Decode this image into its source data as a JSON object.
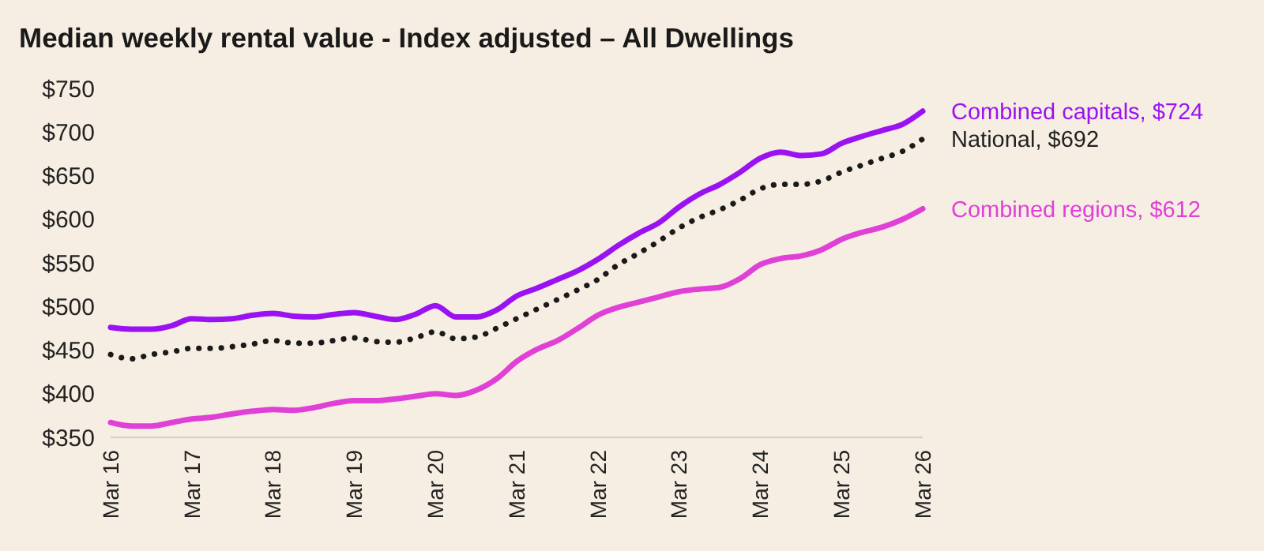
{
  "chart_data": {
    "type": "line",
    "title": "Median weekly rental value - Index adjusted – All Dwellings",
    "x": [
      "2016-03",
      "2016-06",
      "2016-09",
      "2016-12",
      "2017-03",
      "2017-06",
      "2017-09",
      "2017-12",
      "2018-03",
      "2018-06",
      "2018-09",
      "2018-12",
      "2019-03",
      "2019-06",
      "2019-09",
      "2019-12",
      "2020-03",
      "2020-06",
      "2020-09",
      "2020-12",
      "2021-03",
      "2021-06",
      "2021-09",
      "2021-12",
      "2022-03",
      "2022-06",
      "2022-09",
      "2022-12",
      "2023-03",
      "2023-06",
      "2023-09",
      "2023-12",
      "2024-03",
      "2024-06",
      "2024-09",
      "2024-12",
      "2025-03",
      "2025-06",
      "2025-09",
      "2025-12",
      "2026-03"
    ],
    "series": [
      {
        "name": "Combined capitals, $724",
        "color": "#9b12f2",
        "line_style": "solid",
        "values": [
          476,
          474,
          474,
          478,
          486,
          485,
          486,
          490,
          492,
          489,
          488,
          491,
          493,
          489,
          485,
          491,
          501,
          488,
          488,
          496,
          512,
          521,
          531,
          541,
          554,
          570,
          584,
          596,
          614,
          629,
          640,
          654,
          670,
          677,
          673,
          675,
          687,
          695,
          702,
          709,
          724
        ]
      },
      {
        "name": "National, $692",
        "color": "#1a1a1a",
        "line_style": "dotted",
        "values": [
          445,
          440,
          445,
          448,
          452,
          452,
          454,
          457,
          461,
          458,
          458,
          461,
          464,
          460,
          459,
          464,
          471,
          463,
          465,
          475,
          486,
          497,
          508,
          519,
          531,
          548,
          561,
          575,
          590,
          602,
          611,
          622,
          635,
          640,
          640,
          644,
          654,
          662,
          670,
          678,
          692
        ]
      },
      {
        "name": "Combined regions, $612",
        "color": "#e040d6",
        "line_style": "solid",
        "values": [
          367,
          363,
          363,
          367,
          371,
          373,
          377,
          380,
          382,
          381,
          384,
          389,
          392,
          392,
          394,
          397,
          400,
          398,
          404,
          417,
          437,
          451,
          461,
          475,
          490,
          499,
          505,
          511,
          517,
          520,
          522,
          532,
          548,
          555,
          558,
          565,
          577,
          585,
          591,
          600,
          612
        ]
      }
    ],
    "xlim": [
      "2016-03",
      "2026-03"
    ],
    "xticks": [
      {
        "value": "2016-03",
        "label": "Mar 16"
      },
      {
        "value": "2017-03",
        "label": "Mar 17"
      },
      {
        "value": "2018-03",
        "label": "Mar 18"
      },
      {
        "value": "2019-03",
        "label": "Mar 19"
      },
      {
        "value": "2020-03",
        "label": "Mar 20"
      },
      {
        "value": "2021-03",
        "label": "Mar 21"
      },
      {
        "value": "2022-03",
        "label": "Mar 22"
      },
      {
        "value": "2023-03",
        "label": "Mar 23"
      },
      {
        "value": "2024-03",
        "label": "Mar 24"
      },
      {
        "value": "2025-03",
        "label": "Mar 25"
      },
      {
        "value": "2026-03",
        "label": "Mar 26"
      }
    ],
    "ylim": [
      350,
      750
    ],
    "yticks": [
      {
        "value": 350,
        "label": "$350"
      },
      {
        "value": 400,
        "label": "$400"
      },
      {
        "value": 450,
        "label": "$450"
      },
      {
        "value": 500,
        "label": "$500"
      },
      {
        "value": 550,
        "label": "$550"
      },
      {
        "value": 600,
        "label": "$600"
      },
      {
        "value": 650,
        "label": "$650"
      },
      {
        "value": 700,
        "label": "$700"
      },
      {
        "value": 750,
        "label": "$750"
      }
    ],
    "grid": false,
    "legend": false,
    "marker": "none"
  }
}
